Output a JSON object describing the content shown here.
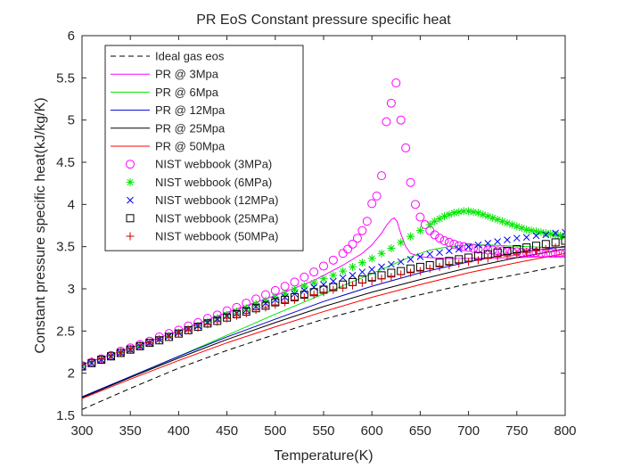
{
  "chart_data": {
    "type": "line",
    "title": "PR EoS Constant pressure specific heat",
    "xlabel": "Temperature(K)",
    "ylabel": "Constant pressure specific heat(kJ/kg/K)",
    "xlim": [
      300,
      800
    ],
    "ylim": [
      1.5,
      6
    ],
    "xticks": [
      300,
      350,
      400,
      450,
      500,
      550,
      600,
      650,
      700,
      750,
      800
    ],
    "yticks": [
      1.5,
      2,
      2.5,
      3,
      3.5,
      4,
      4.5,
      5,
      5.5,
      6
    ],
    "xtick_labels": [
      "300",
      "350",
      "400",
      "450",
      "500",
      "550",
      "600",
      "650",
      "700",
      "750",
      "800"
    ],
    "ytick_labels": [
      "1.5",
      "2",
      "2.5",
      "3",
      "3.5",
      "4",
      "4.5",
      "5",
      "5.5",
      "6"
    ],
    "grid": false,
    "legend_position": "top-left",
    "series": [
      {
        "name": "Ideal gas eos",
        "style": "dashed-line",
        "color": "#000000",
        "x": [
          300,
          350,
          400,
          450,
          500,
          550,
          600,
          650,
          700,
          750,
          800
        ],
        "y": [
          1.57,
          1.82,
          2.06,
          2.27,
          2.46,
          2.64,
          2.79,
          2.93,
          3.06,
          3.17,
          3.28
        ]
      },
      {
        "name": "PR @ 3Mpa",
        "style": "line",
        "color": "#ff00ff",
        "x": [
          300,
          350,
          400,
          450,
          500,
          540,
          570,
          590,
          600,
          610,
          615,
          620,
          623,
          626,
          630,
          635,
          640,
          650,
          660,
          680,
          700,
          750,
          800
        ],
        "y": [
          2.1,
          2.3,
          2.5,
          2.72,
          2.92,
          3.1,
          3.28,
          3.42,
          3.52,
          3.66,
          3.75,
          3.82,
          3.84,
          3.8,
          3.65,
          3.5,
          3.42,
          3.38,
          3.37,
          3.36,
          3.36,
          3.37,
          3.39
        ]
      },
      {
        "name": "PR @ 6Mpa",
        "style": "line",
        "color": "#00e600",
        "x": [
          300,
          350,
          400,
          450,
          500,
          550,
          600,
          620,
          640,
          660,
          680,
          700,
          720,
          740,
          760,
          780,
          800
        ],
        "y": [
          1.72,
          1.95,
          2.2,
          2.45,
          2.7,
          2.94,
          3.18,
          3.28,
          3.38,
          3.46,
          3.5,
          3.52,
          3.52,
          3.51,
          3.5,
          3.49,
          3.49
        ]
      },
      {
        "name": "PR @ 12Mpa",
        "style": "line",
        "color": "#0000cc",
        "x": [
          300,
          350,
          400,
          450,
          500,
          550,
          600,
          650,
          700,
          750,
          800
        ],
        "y": [
          1.72,
          1.96,
          2.2,
          2.43,
          2.64,
          2.85,
          3.03,
          3.19,
          3.32,
          3.43,
          3.5
        ]
      },
      {
        "name": "PR @ 25Mpa",
        "style": "line",
        "color": "#000000",
        "x": [
          300,
          350,
          400,
          450,
          500,
          550,
          600,
          650,
          700,
          750,
          800
        ],
        "y": [
          1.71,
          1.95,
          2.18,
          2.4,
          2.6,
          2.79,
          2.96,
          3.11,
          3.25,
          3.37,
          3.47
        ]
      },
      {
        "name": "PR @ 50Mpa",
        "style": "line",
        "color": "#ff0000",
        "x": [
          300,
          350,
          400,
          450,
          500,
          550,
          600,
          650,
          700,
          750,
          800
        ],
        "y": [
          1.7,
          1.93,
          2.15,
          2.36,
          2.55,
          2.73,
          2.9,
          3.05,
          3.19,
          3.31,
          3.42
        ]
      },
      {
        "name": "NIST webbook (3MPa)",
        "style": "circle",
        "color": "#ff00ff",
        "x": [
          300,
          310,
          320,
          330,
          340,
          350,
          360,
          370,
          380,
          390,
          400,
          410,
          420,
          430,
          440,
          450,
          460,
          470,
          480,
          490,
          500,
          510,
          520,
          530,
          540,
          550,
          560,
          570,
          575,
          580,
          585,
          590,
          595,
          600,
          605,
          610,
          615,
          620,
          625,
          630,
          635,
          640,
          645,
          650,
          655,
          660,
          665,
          670,
          675,
          680,
          685,
          690,
          695,
          700,
          705,
          710,
          715,
          720,
          725,
          730,
          735,
          740,
          745,
          750,
          755,
          760,
          765,
          770,
          775,
          780,
          785,
          790,
          795,
          800
        ],
        "y": [
          2.09,
          2.13,
          2.17,
          2.21,
          2.26,
          2.3,
          2.34,
          2.38,
          2.43,
          2.47,
          2.51,
          2.56,
          2.6,
          2.65,
          2.69,
          2.74,
          2.78,
          2.83,
          2.88,
          2.93,
          2.98,
          3.03,
          3.08,
          3.14,
          3.2,
          3.27,
          3.34,
          3.42,
          3.47,
          3.53,
          3.6,
          3.69,
          3.8,
          4.01,
          4.1,
          4.34,
          4.98,
          5.2,
          5.44,
          5.0,
          4.67,
          4.26,
          4.0,
          3.85,
          3.76,
          3.69,
          3.64,
          3.6,
          3.57,
          3.55,
          3.53,
          3.51,
          3.5,
          3.49,
          3.48,
          3.47,
          3.47,
          3.46,
          3.46,
          3.45,
          3.45,
          3.44,
          3.44,
          3.44,
          3.43,
          3.43,
          3.43,
          3.43,
          3.42,
          3.42,
          3.42,
          3.42,
          3.42,
          3.42
        ]
      },
      {
        "name": "NIST webbook (6MPa)",
        "style": "asterisk",
        "color": "#00e600",
        "x": [
          300,
          310,
          320,
          330,
          340,
          350,
          360,
          370,
          380,
          390,
          400,
          410,
          420,
          430,
          440,
          450,
          460,
          470,
          480,
          490,
          500,
          510,
          520,
          530,
          540,
          550,
          560,
          570,
          580,
          590,
          600,
          610,
          620,
          630,
          640,
          650,
          660,
          665,
          670,
          675,
          680,
          685,
          690,
          695,
          700,
          705,
          710,
          715,
          720,
          725,
          730,
          735,
          740,
          745,
          750,
          755,
          760,
          765,
          770,
          775,
          780,
          785,
          790,
          795,
          800
        ],
        "y": [
          2.08,
          2.12,
          2.16,
          2.2,
          2.24,
          2.28,
          2.32,
          2.36,
          2.4,
          2.44,
          2.48,
          2.52,
          2.56,
          2.61,
          2.65,
          2.69,
          2.73,
          2.77,
          2.82,
          2.86,
          2.9,
          2.94,
          2.99,
          3.03,
          3.07,
          3.12,
          3.16,
          3.21,
          3.26,
          3.31,
          3.36,
          3.42,
          3.48,
          3.55,
          3.62,
          3.69,
          3.76,
          3.8,
          3.83,
          3.86,
          3.88,
          3.9,
          3.91,
          3.92,
          3.92,
          3.91,
          3.9,
          3.88,
          3.86,
          3.84,
          3.82,
          3.8,
          3.78,
          3.76,
          3.74,
          3.72,
          3.7,
          3.69,
          3.68,
          3.67,
          3.66,
          3.65,
          3.64,
          3.63,
          3.62
        ]
      },
      {
        "name": "NIST webbook (12MPa)",
        "style": "cross",
        "color": "#0000ff",
        "x": [
          300,
          310,
          320,
          330,
          340,
          350,
          360,
          370,
          380,
          390,
          400,
          410,
          420,
          430,
          440,
          450,
          460,
          470,
          480,
          490,
          500,
          510,
          520,
          530,
          540,
          550,
          560,
          570,
          580,
          590,
          600,
          610,
          620,
          630,
          640,
          650,
          660,
          670,
          680,
          690,
          700,
          710,
          720,
          730,
          740,
          750,
          760,
          770,
          780,
          790,
          800
        ],
        "y": [
          2.08,
          2.12,
          2.16,
          2.2,
          2.24,
          2.28,
          2.32,
          2.36,
          2.4,
          2.44,
          2.48,
          2.52,
          2.56,
          2.6,
          2.64,
          2.68,
          2.71,
          2.75,
          2.79,
          2.83,
          2.87,
          2.9,
          2.94,
          2.98,
          3.02,
          3.05,
          3.09,
          3.13,
          3.16,
          3.2,
          3.23,
          3.26,
          3.29,
          3.32,
          3.35,
          3.38,
          3.41,
          3.43,
          3.45,
          3.47,
          3.5,
          3.52,
          3.54,
          3.56,
          3.58,
          3.6,
          3.61,
          3.63,
          3.64,
          3.66,
          3.67
        ]
      },
      {
        "name": "NIST webbook (25MPa)",
        "style": "square",
        "color": "#000000",
        "x": [
          300,
          310,
          320,
          330,
          340,
          350,
          360,
          370,
          380,
          390,
          400,
          410,
          420,
          430,
          440,
          450,
          460,
          470,
          480,
          490,
          500,
          510,
          520,
          530,
          540,
          550,
          560,
          570,
          580,
          590,
          600,
          610,
          620,
          630,
          640,
          650,
          660,
          670,
          680,
          690,
          700,
          710,
          720,
          730,
          740,
          750,
          760,
          770,
          780,
          790,
          800
        ],
        "y": [
          2.08,
          2.12,
          2.16,
          2.2,
          2.24,
          2.28,
          2.32,
          2.36,
          2.39,
          2.43,
          2.47,
          2.51,
          2.55,
          2.59,
          2.62,
          2.66,
          2.7,
          2.73,
          2.77,
          2.8,
          2.84,
          2.87,
          2.9,
          2.93,
          2.96,
          2.99,
          3.02,
          3.05,
          3.08,
          3.11,
          3.14,
          3.16,
          3.19,
          3.21,
          3.24,
          3.26,
          3.28,
          3.31,
          3.33,
          3.35,
          3.37,
          3.39,
          3.41,
          3.43,
          3.45,
          3.47,
          3.49,
          3.51,
          3.53,
          3.55,
          3.57
        ]
      },
      {
        "name": "NIST webbook (50MPa)",
        "style": "plus",
        "color": "#cc0000",
        "x": [
          300,
          310,
          320,
          330,
          340,
          350,
          360,
          370,
          380,
          390,
          400,
          410,
          420,
          430,
          440,
          450,
          460,
          470,
          480,
          490,
          500,
          510,
          520,
          530,
          540,
          550,
          560,
          570,
          580,
          590,
          600,
          610,
          620,
          630,
          640,
          650,
          660,
          670,
          680,
          690,
          700,
          710,
          720,
          730,
          740,
          750,
          760,
          770,
          780,
          790,
          800
        ],
        "y": [
          2.1,
          2.14,
          2.17,
          2.21,
          2.25,
          2.29,
          2.33,
          2.36,
          2.4,
          2.43,
          2.47,
          2.51,
          2.54,
          2.58,
          2.61,
          2.65,
          2.68,
          2.71,
          2.75,
          2.78,
          2.81,
          2.84,
          2.87,
          2.9,
          2.93,
          2.96,
          2.99,
          3.01,
          3.04,
          3.07,
          3.09,
          3.12,
          3.14,
          3.17,
          3.19,
          3.21,
          3.24,
          3.26,
          3.28,
          3.3,
          3.32,
          3.34,
          3.36,
          3.38,
          3.39,
          3.41,
          3.43,
          3.45,
          3.47,
          3.49,
          3.5
        ]
      }
    ]
  }
}
